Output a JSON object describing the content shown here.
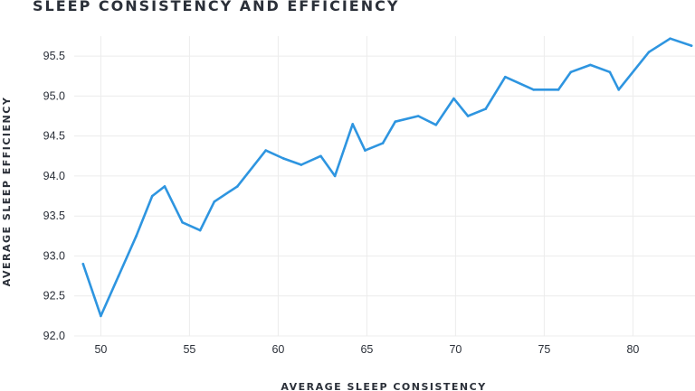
{
  "chart_data": {
    "type": "line",
    "title": "SLEEP CONSISTENCY AND EFFICIENCY",
    "xlabel": "AVERAGE SLEEP CONSISTENCY",
    "ylabel": "AVERAGE SLEEP EFFICIENCY",
    "xlim": [
      48.5,
      83.5
    ],
    "ylim": [
      92.0,
      95.75
    ],
    "x_ticks": [
      50,
      55,
      60,
      65,
      70,
      75,
      80
    ],
    "y_ticks": [
      "92.0",
      "92.5",
      "93.0",
      "93.5",
      "94.0",
      "94.5",
      "95.0",
      "95.5"
    ],
    "grid": true,
    "line_color": "#2e95e0",
    "series": [
      {
        "x": [
          49.0,
          50.0,
          51.0,
          52.0,
          52.9,
          53.6,
          54.6,
          55.6,
          56.4,
          57.7,
          59.3,
          60.3,
          61.3,
          62.4,
          63.2,
          64.2,
          64.9,
          65.9,
          66.6,
          67.9,
          68.9,
          69.9,
          70.7,
          71.7,
          72.8,
          74.4,
          75.8,
          76.5,
          77.6,
          78.7,
          79.2,
          80.9,
          82.1,
          83.3
        ],
        "y": [
          92.9,
          92.25,
          92.75,
          93.25,
          93.75,
          93.87,
          93.42,
          93.32,
          93.68,
          93.87,
          94.32,
          94.22,
          94.14,
          94.25,
          94.0,
          94.65,
          94.32,
          94.41,
          94.68,
          94.75,
          94.64,
          94.97,
          94.75,
          94.84,
          95.24,
          95.08,
          95.08,
          95.3,
          95.39,
          95.3,
          95.08,
          95.55,
          95.72,
          95.63
        ]
      }
    ]
  }
}
